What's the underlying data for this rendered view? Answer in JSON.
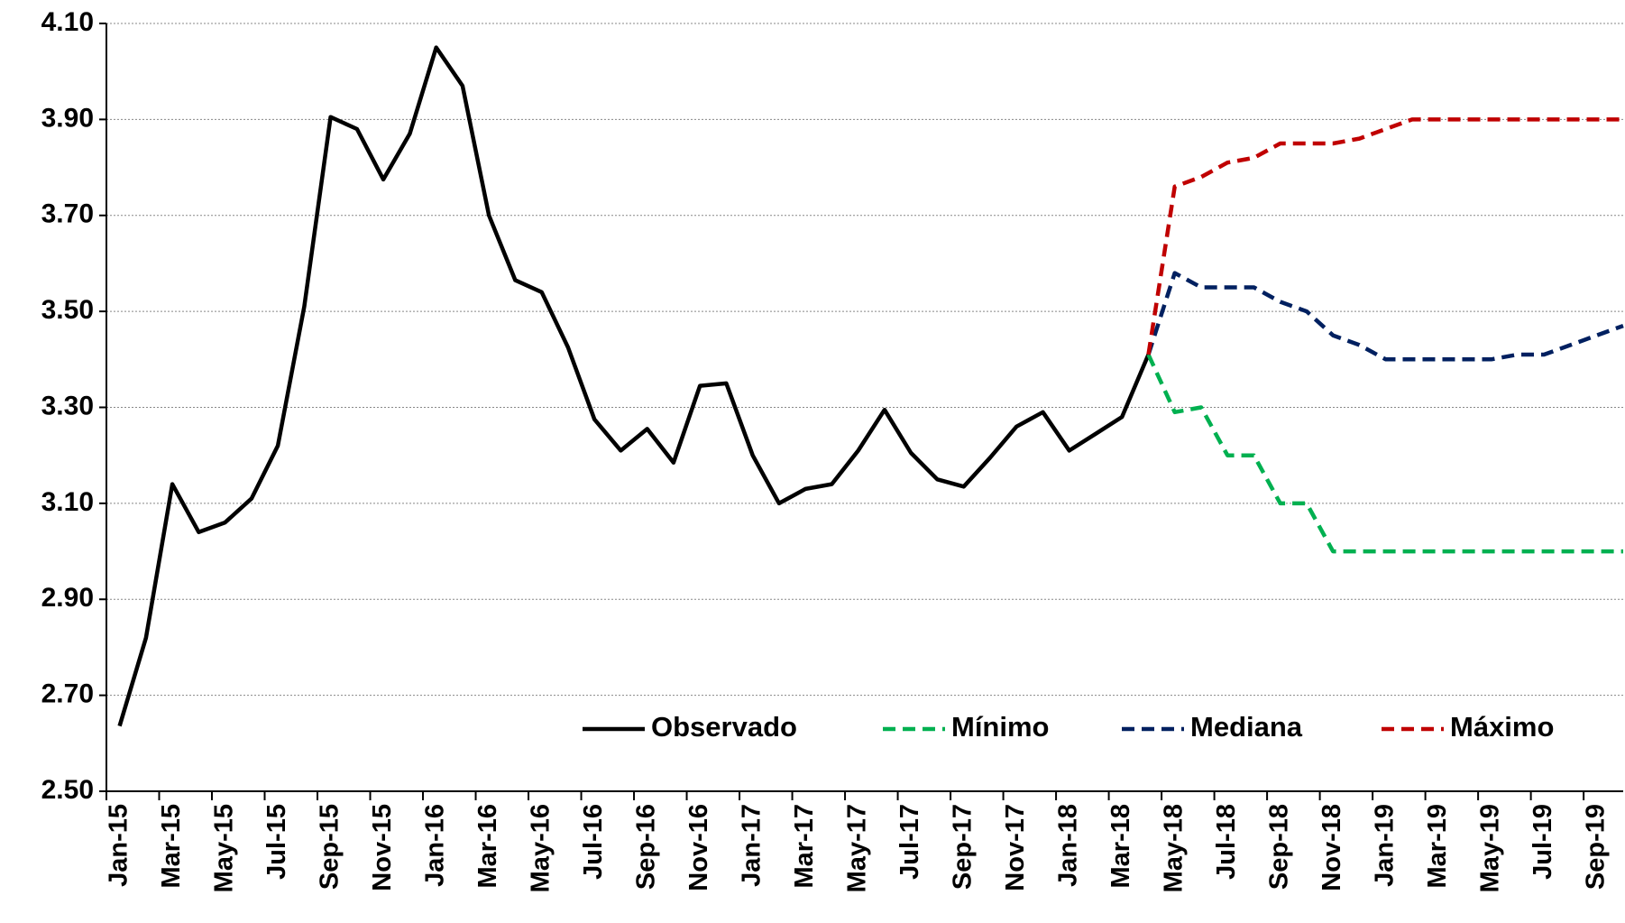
{
  "chart_data": {
    "type": "line",
    "categories": [
      "Jan-15",
      null,
      "Mar-15",
      null,
      "May-15",
      null,
      "Jul-15",
      null,
      "Sep-15",
      null,
      "Nov-15",
      null,
      "Jan-16",
      null,
      "Mar-16",
      null,
      "May-16",
      null,
      "Jul-16",
      null,
      "Sep-16",
      null,
      "Nov-16",
      null,
      "Jan-17",
      null,
      "Mar-17",
      null,
      "May-17",
      null,
      "Jul-17",
      null,
      "Sep-17",
      null,
      "Nov-17",
      null,
      "Jan-18",
      null,
      "Mar-18",
      null,
      "May-18",
      null,
      "Jul-18",
      null,
      "Sep-18",
      null,
      "Nov-18",
      null,
      "Jan-19",
      null,
      "Mar-19",
      null,
      "May-19",
      null,
      "Jul-19",
      null,
      "Sep-19",
      null
    ],
    "series": [
      {
        "name": "Observado",
        "color": "#000000",
        "dashed": false,
        "values": [
          2.636,
          2.82,
          3.14,
          3.04,
          3.06,
          3.11,
          3.22,
          3.51,
          3.905,
          3.88,
          3.775,
          3.87,
          4.05,
          3.97,
          3.7,
          3.565,
          3.54,
          3.425,
          3.275,
          3.21,
          3.255,
          3.185,
          3.345,
          3.35,
          3.2,
          3.1,
          3.13,
          3.14,
          3.21,
          3.295,
          3.205,
          3.15,
          3.135,
          3.195,
          3.26,
          3.29,
          3.21,
          3.245,
          3.28,
          3.41,
          null,
          null,
          null,
          null,
          null,
          null,
          null,
          null,
          null,
          null,
          null,
          null,
          null,
          null,
          null,
          null,
          null,
          null
        ]
      },
      {
        "name": "Mínimo",
        "color": "#00b050",
        "dashed": true,
        "values": [
          null,
          null,
          null,
          null,
          null,
          null,
          null,
          null,
          null,
          null,
          null,
          null,
          null,
          null,
          null,
          null,
          null,
          null,
          null,
          null,
          null,
          null,
          null,
          null,
          null,
          null,
          null,
          null,
          null,
          null,
          null,
          null,
          null,
          null,
          null,
          null,
          null,
          null,
          null,
          3.41,
          3.29,
          3.3,
          3.2,
          3.2,
          3.1,
          3.1,
          3.0,
          3.0,
          3.0,
          3.0,
          3.0,
          3.0,
          3.0,
          3.0,
          3.0,
          3.0,
          3.0,
          3.0
        ]
      },
      {
        "name": "Mediana",
        "color": "#002060",
        "dashed": true,
        "values": [
          null,
          null,
          null,
          null,
          null,
          null,
          null,
          null,
          null,
          null,
          null,
          null,
          null,
          null,
          null,
          null,
          null,
          null,
          null,
          null,
          null,
          null,
          null,
          null,
          null,
          null,
          null,
          null,
          null,
          null,
          null,
          null,
          null,
          null,
          null,
          null,
          null,
          null,
          null,
          3.41,
          3.58,
          3.55,
          3.55,
          3.55,
          3.52,
          3.5,
          3.45,
          3.43,
          3.4,
          3.4,
          3.4,
          3.4,
          3.4,
          3.41,
          3.41,
          3.43,
          3.45,
          3.47
        ]
      },
      {
        "name": "Máximo",
        "color": "#c00000",
        "dashed": true,
        "values": [
          null,
          null,
          null,
          null,
          null,
          null,
          null,
          null,
          null,
          null,
          null,
          null,
          null,
          null,
          null,
          null,
          null,
          null,
          null,
          null,
          null,
          null,
          null,
          null,
          null,
          null,
          null,
          null,
          null,
          null,
          null,
          null,
          null,
          null,
          null,
          null,
          null,
          null,
          null,
          3.41,
          3.76,
          3.78,
          3.81,
          3.82,
          3.85,
          3.85,
          3.85,
          3.86,
          3.88,
          3.9,
          3.9,
          3.9,
          3.9,
          3.9,
          3.9,
          3.9,
          3.9,
          3.9
        ]
      }
    ],
    "ylim": [
      2.5,
      4.1
    ],
    "yticks": [
      {
        "value": 2.5,
        "label": "2.50"
      },
      {
        "value": 2.7,
        "label": "2.70"
      },
      {
        "value": 2.9,
        "label": "2.90"
      },
      {
        "value": 3.1,
        "label": "3.10"
      },
      {
        "value": 3.3,
        "label": "3.30"
      },
      {
        "value": 3.5,
        "label": "3.50"
      },
      {
        "value": 3.7,
        "label": "3.70"
      },
      {
        "value": 3.9,
        "label": "3.90"
      },
      {
        "value": 4.1,
        "label": "4.10"
      }
    ],
    "grid": true,
    "legend": "lower right"
  }
}
